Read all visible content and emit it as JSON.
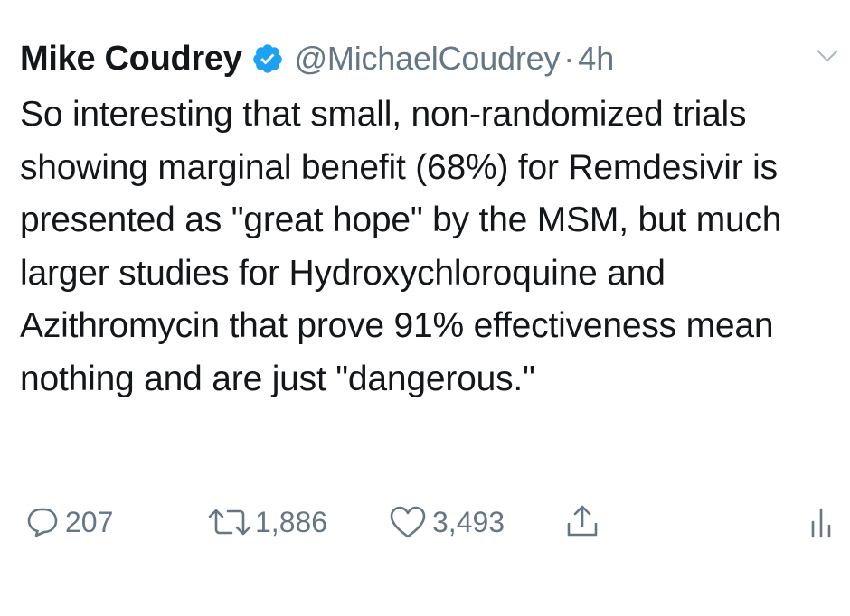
{
  "tweet": {
    "name": "Mike Coudrey",
    "handle": "@MichaelCoudrey",
    "separator": "·",
    "time": "4h",
    "verified_icon": "verified-badge-icon",
    "text": "So interesting that small, non-randomized trials showing marginal benefit (68%) for Remdesivir is presented as \"great hope\" by the MSM, but much larger studies for Hydroxychloroquine and Azithromycin that prove 91% effectiveness mean nothing and are just \"dangerous.\""
  },
  "actions": {
    "reply_icon": "reply-icon",
    "reply_count": "207",
    "retweet_icon": "retweet-icon",
    "retweet_count": "1,886",
    "like_icon": "heart-icon",
    "like_count": "3,493",
    "share_icon": "share-icon",
    "analytics_icon": "analytics-icon"
  },
  "colors": {
    "text": "#14171a",
    "secondary": "#657786",
    "verified": "#1da1f2"
  }
}
